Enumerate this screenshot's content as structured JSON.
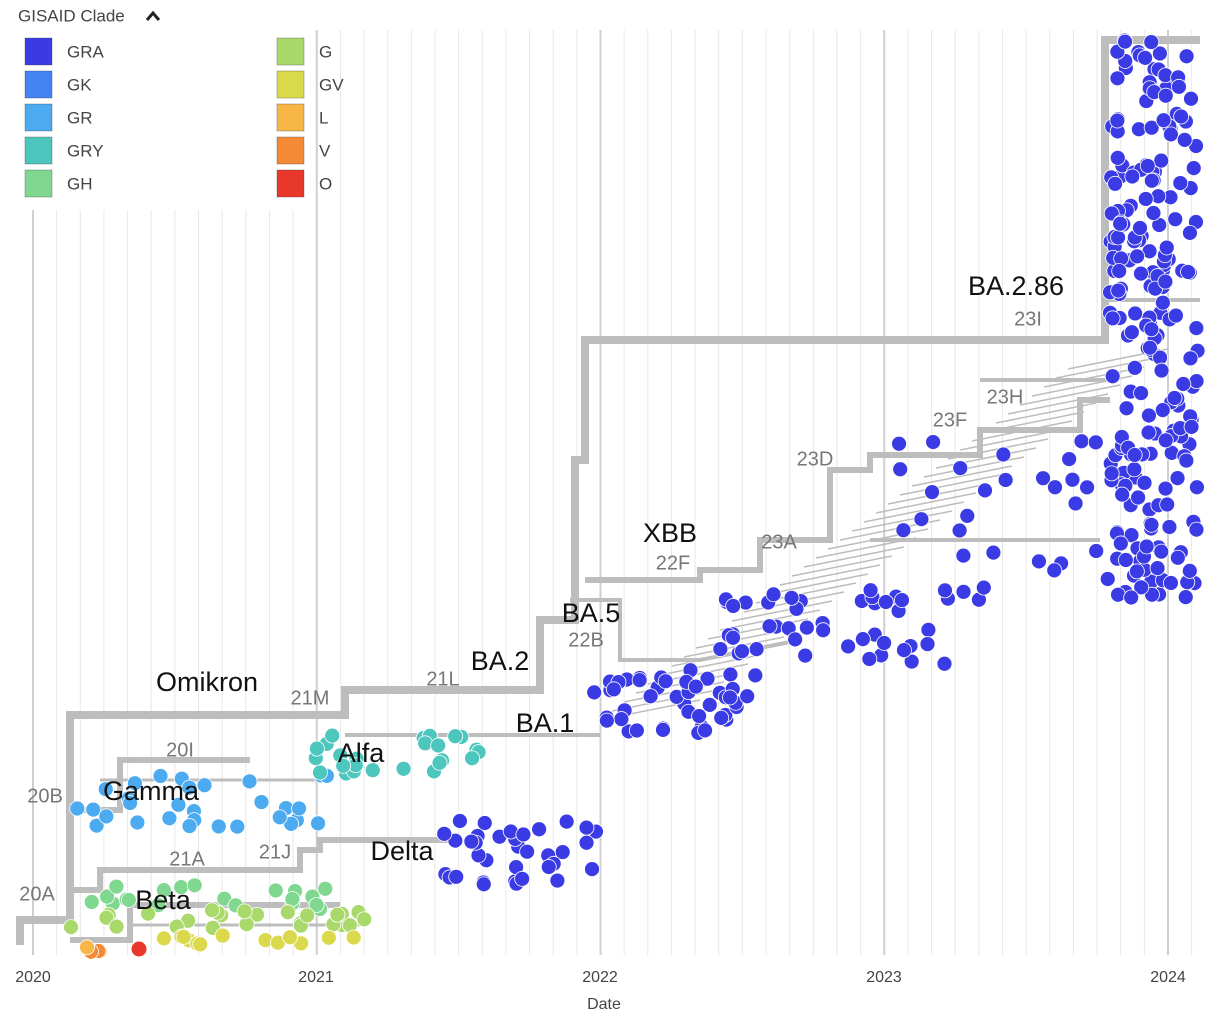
{
  "legend": {
    "title": "GISAID Clade",
    "items": [
      {
        "label": "GRA",
        "color": "#3b3be6"
      },
      {
        "label": "GK",
        "color": "#4383f2"
      },
      {
        "label": "GR",
        "color": "#4caaf0"
      },
      {
        "label": "GRY",
        "color": "#4dc6bd"
      },
      {
        "label": "GH",
        "color": "#80d890"
      },
      {
        "label": "G",
        "color": "#a9d86b"
      },
      {
        "label": "GV",
        "color": "#d9d94b"
      },
      {
        "label": "L",
        "color": "#f7b646"
      },
      {
        "label": "V",
        "color": "#f58a36"
      },
      {
        "label": "O",
        "color": "#e8372b"
      }
    ]
  },
  "clade_labels": [
    "20A",
    "20B",
    "20I",
    "21A",
    "21J",
    "21M",
    "21L",
    "22B",
    "22F",
    "23A",
    "23D",
    "23F",
    "23H",
    "23I"
  ],
  "annotations": [
    "Omikron",
    "Gamma",
    "Alfa",
    "Beta",
    "Delta",
    "BA.1",
    "BA.2",
    "BA.5",
    "XBB",
    "BA.2.86"
  ],
  "axis": {
    "title": "Date",
    "ticks": [
      "2020",
      "2021",
      "2022",
      "2023",
      "2024"
    ]
  }
}
